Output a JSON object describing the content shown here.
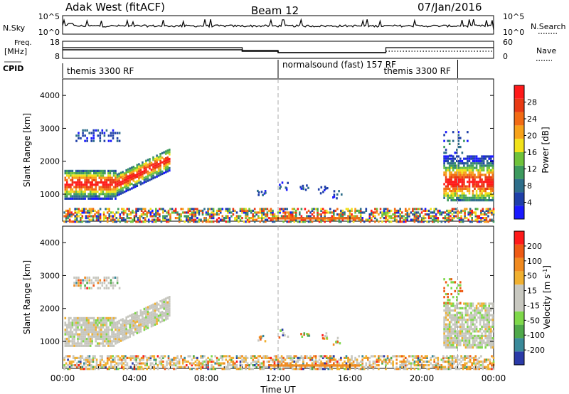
{
  "header": {
    "station": "Adak West (fitACF)",
    "beam": "Beam 12",
    "date": "07/Jan/2016"
  },
  "strip_labels": {
    "nsky": "N.Sky",
    "nsky_ticks": [
      "10^5",
      "10^0"
    ],
    "nsearch": "N.Search",
    "nsearch_ticks": [
      "10^5",
      "10^0"
    ],
    "freq": "Freq.",
    "freq_unit": "[MHz]",
    "freq_ticks": [
      "18",
      "8"
    ],
    "nave": "Nave",
    "nave_ticks": [
      "60",
      "0"
    ],
    "cpid": "CPID"
  },
  "cpid_segments": [
    {
      "label": "themis 3300 RF",
      "start_h": 0,
      "end_h": 12
    },
    {
      "label": "normalsound (fast) 157 RF",
      "start_h": 12,
      "end_h": 22
    },
    {
      "label": "themis 3300 RF",
      "start_h": 22,
      "end_h": 24
    }
  ],
  "colors": {
    "power": [
      "#1a1aff",
      "#1f3fa8",
      "#2e6e8a",
      "#3d9a5e",
      "#6fc23a",
      "#f2e21a",
      "#f7a21a",
      "#f26b14",
      "#e83a14",
      "#ff1a1a"
    ],
    "velocity": [
      "#2a3aa8",
      "#3a8a9a",
      "#4fa84a",
      "#7ed84a",
      "#c8c8c0",
      "#c8c8c0",
      "#f0b030",
      "#f08a20",
      "#ee5a14",
      "#ff1a1a"
    ],
    "gray": "#c6c6be"
  },
  "chart_data": [
    {
      "type": "heatmap",
      "name": "power",
      "xlabel": "",
      "ylabel": "Slant Range [km]",
      "x_range_h": [
        0,
        24
      ],
      "ylim": [
        180,
        4500
      ],
      "yticks": [
        "1000",
        "2000",
        "3000",
        "4000"
      ],
      "colorbar_label": "Power [dB]",
      "colorbar_ticks": [
        "4",
        "8",
        "12",
        "16",
        "20",
        "24",
        "28"
      ]
    },
    {
      "type": "heatmap",
      "name": "velocity",
      "xlabel": "Time UT",
      "ylabel": "Slant Range [km]",
      "x_range_h": [
        0,
        24
      ],
      "ylim": [
        180,
        4500
      ],
      "yticks": [
        "1000",
        "2000",
        "3000",
        "4000"
      ],
      "xticks": [
        "00:00",
        "04:00",
        "08:00",
        "12:00",
        "16:00",
        "20:00",
        "00:00"
      ],
      "colorbar_label": "Velocity [m s^-1]",
      "colorbar_ticks": [
        "200",
        "100",
        "50",
        "15",
        "-15",
        "-50",
        "-100",
        "-200"
      ]
    }
  ]
}
